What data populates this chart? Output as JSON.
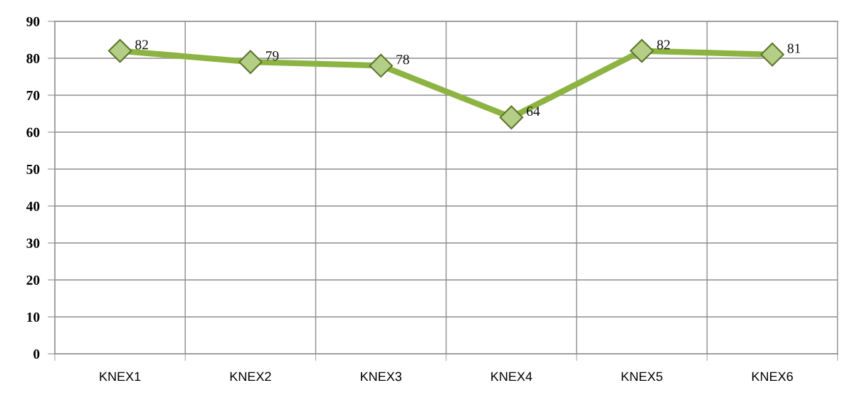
{
  "chart_data": {
    "type": "line",
    "categories": [
      "KNEX1",
      "KNEX2",
      "KNEX3",
      "KNEX4",
      "KNEX5",
      "KNEX6"
    ],
    "series": [
      {
        "color": "#8db443",
        "values": [
          82,
          79,
          78,
          64,
          82,
          81
        ]
      }
    ],
    "ylim": [
      0,
      90
    ],
    "yticks": [
      0,
      10,
      20,
      30,
      40,
      50,
      60,
      70,
      80,
      90
    ],
    "grid": true,
    "marker": "diamond",
    "line_style": "solid",
    "data_labels": true
  }
}
